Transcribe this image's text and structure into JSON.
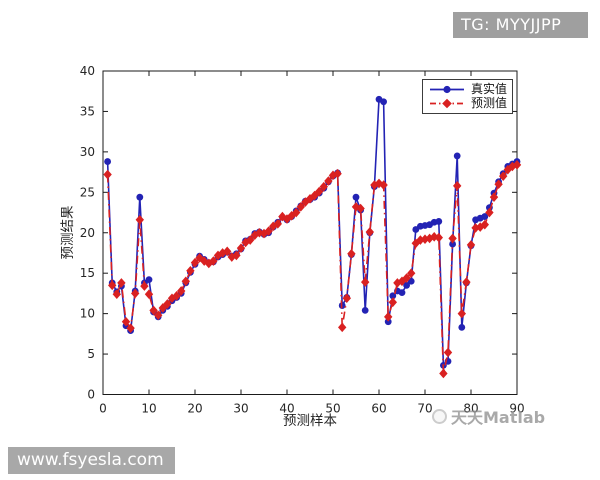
{
  "watermarks": {
    "top_right": "TG: MYYJJPP",
    "bottom_left": "www.fsyesla.com",
    "bottom_right": "天天Matlab"
  },
  "chart_data": {
    "type": "line",
    "title": "",
    "xlabel": "预测样本",
    "ylabel": "预测结果",
    "xlim": [
      0,
      90
    ],
    "ylim": [
      0,
      40
    ],
    "xticks": [
      0,
      10,
      20,
      30,
      40,
      50,
      60,
      70,
      80,
      90
    ],
    "yticks": [
      0,
      5,
      10,
      15,
      20,
      25,
      30,
      35,
      40
    ],
    "grid": false,
    "legend_position": "top-right-inside",
    "axis_color": "#1a1a1a",
    "x_start": 1,
    "series": [
      {
        "name": "真实值",
        "color": "#2323b4",
        "marker": "circle",
        "linestyle": "solid",
        "values": [
          28.8,
          13.8,
          12.7,
          13.4,
          8.5,
          7.9,
          12.8,
          24.4,
          13.8,
          14.2,
          10.2,
          9.6,
          10.4,
          10.9,
          11.6,
          12.0,
          12.5,
          13.8,
          15.1,
          16.1,
          17.1,
          16.7,
          16.3,
          16.4,
          17.0,
          17.3,
          17.6,
          17.1,
          17.4,
          18.0,
          19.0,
          19.2,
          19.9,
          20.1,
          19.8,
          20.0,
          20.7,
          21.3,
          21.9,
          21.6,
          22.0,
          22.7,
          23.3,
          23.9,
          24.1,
          24.4,
          24.9,
          25.5,
          26.3,
          27.0,
          27.4,
          11.0,
          12.0,
          17.3,
          24.4,
          22.8,
          10.4,
          20.0,
          25.7,
          36.5,
          36.2,
          9.0,
          12.2,
          12.8,
          12.6,
          13.5,
          14.0,
          20.4,
          20.8,
          20.9,
          21.0,
          21.3,
          21.4,
          3.6,
          4.1,
          18.6,
          29.5,
          8.3,
          13.8,
          18.4,
          21.6,
          21.8,
          22.0,
          23.1,
          24.9,
          26.3,
          27.3,
          28.2,
          28.5,
          28.8
        ]
      },
      {
        "name": "预测值",
        "color": "#d92121",
        "marker": "diamond",
        "linestyle": "dash-dot",
        "values": [
          27.2,
          13.5,
          12.4,
          13.8,
          9.0,
          8.2,
          12.5,
          21.6,
          13.4,
          12.4,
          10.4,
          9.8,
          10.7,
          11.2,
          11.9,
          12.2,
          12.8,
          14.0,
          15.3,
          16.3,
          16.9,
          16.5,
          16.2,
          16.5,
          17.2,
          17.5,
          17.7,
          17.0,
          17.2,
          18.1,
          18.8,
          19.1,
          19.7,
          20.0,
          19.9,
          20.2,
          20.8,
          21.1,
          22.0,
          21.7,
          22.1,
          22.5,
          23.2,
          23.8,
          24.2,
          24.6,
          25.1,
          25.7,
          26.4,
          27.1,
          27.3,
          8.3,
          11.9,
          17.4,
          23.2,
          23.0,
          13.9,
          20.1,
          25.9,
          26.1,
          25.9,
          9.6,
          11.4,
          13.8,
          14.0,
          14.4,
          15.0,
          18.7,
          19.1,
          19.2,
          19.3,
          19.5,
          19.4,
          2.6,
          5.2,
          19.3,
          25.8,
          10.0,
          13.9,
          18.5,
          20.6,
          20.7,
          21.0,
          22.5,
          24.4,
          26.0,
          27.0,
          27.8,
          28.2,
          28.4
        ]
      }
    ]
  }
}
